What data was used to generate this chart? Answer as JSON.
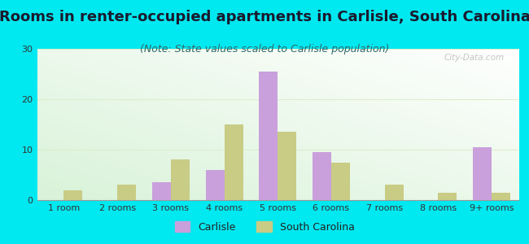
{
  "title": "Rooms in renter-occupied apartments in Carlisle, South Carolina",
  "subtitle": "(Note: State values scaled to Carlisle population)",
  "categories": [
    "1 room",
    "2 rooms",
    "3 rooms",
    "4 rooms",
    "5 rooms",
    "6 rooms",
    "7 rooms",
    "8 rooms",
    "9+ rooms"
  ],
  "carlisle": [
    0,
    0,
    3.5,
    6,
    25.5,
    9.5,
    0,
    0,
    10.5
  ],
  "south_carolina": [
    2,
    3,
    8,
    15,
    13.5,
    7.5,
    3,
    1.5,
    1.5
  ],
  "carlisle_color": "#c9a0dc",
  "sc_color": "#c8cc84",
  "background_color": "#00e8f0",
  "ylim": [
    0,
    30
  ],
  "yticks": [
    0,
    10,
    20,
    30
  ],
  "bar_width": 0.35,
  "title_fontsize": 13,
  "subtitle_fontsize": 9,
  "tick_fontsize": 8,
  "legend_fontsize": 9,
  "watermark": "City-Data.com"
}
